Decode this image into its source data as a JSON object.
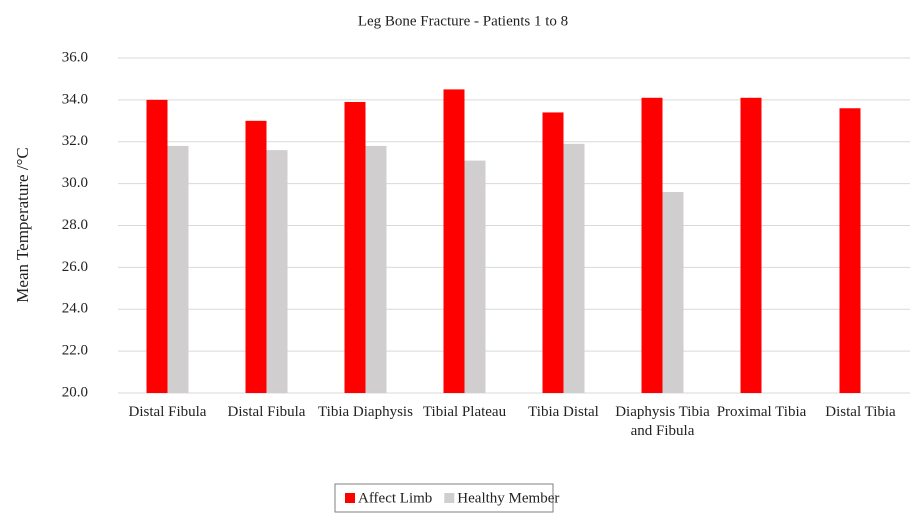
{
  "chart_data": {
    "type": "bar",
    "title": "Leg Bone Fracture - Patients 1 to 8",
    "y_label": "Mean Temperature  /°C",
    "categories": [
      "Distal Fibula",
      "Distal Fibula",
      "Tibia Diaphysis",
      "Tibial Plateau",
      "Tibia Distal",
      "Diaphysis Tibia and Fibula",
      "Proximal Tibia",
      "Distal Tibia"
    ],
    "series": [
      {
        "name": "Affect Limb",
        "color": "#ff0000",
        "values": [
          34.0,
          33.0,
          33.9,
          34.5,
          33.4,
          34.1,
          34.1,
          33.6
        ]
      },
      {
        "name": "Healthy Member",
        "color": "#d0cece",
        "values": [
          31.8,
          31.6,
          31.8,
          31.1,
          31.9,
          29.6,
          null,
          null
        ]
      }
    ],
    "ylim": [
      20,
      36
    ],
    "yticks": [
      {
        "value": 20,
        "label": "20.0"
      },
      {
        "value": 22,
        "label": "22.0"
      },
      {
        "value": 24,
        "label": "24.0"
      },
      {
        "value": 26,
        "label": "26.0"
      },
      {
        "value": 28,
        "label": "28.0"
      },
      {
        "value": 30,
        "label": "30.0"
      },
      {
        "value": 32,
        "label": "32.0"
      },
      {
        "value": 34,
        "label": "34.0"
      },
      {
        "value": 36,
        "label": "36.0"
      }
    ],
    "grid": true,
    "legend": "bottom"
  }
}
